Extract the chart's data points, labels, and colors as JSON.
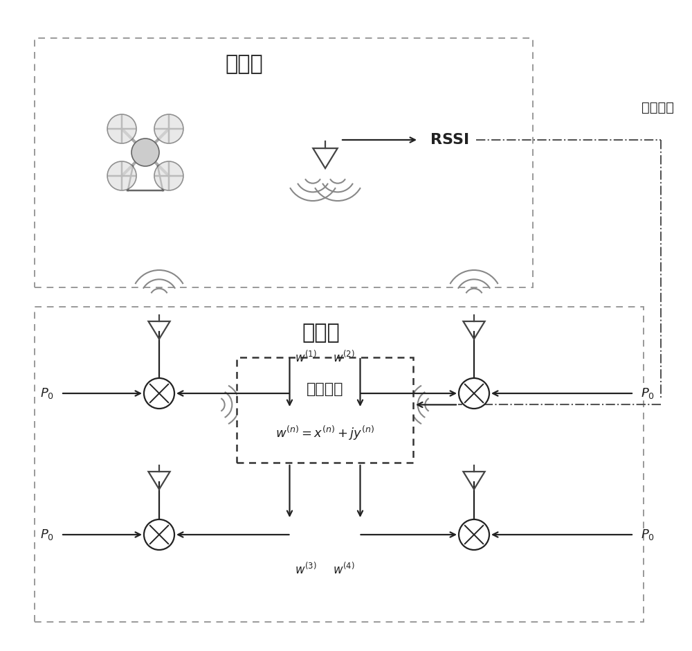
{
  "bg": "#ffffff",
  "lc": "#222222",
  "gray": "#888888",
  "dgray": "#555555",
  "receiver_label": "接收端",
  "sender_label": "发送端",
  "rssi_label": "RSSI",
  "feedback_label": "无线反馈",
  "weight_label1": "权重向量",
  "weight_formula": "w^{(n)} = x^{(n)} + jy^{(n)}",
  "P0": "P_0",
  "w1": "w^{(1)}",
  "w2": "w^{(2)}",
  "w3": "w^{(3)}",
  "w4": "w^{(4)}"
}
